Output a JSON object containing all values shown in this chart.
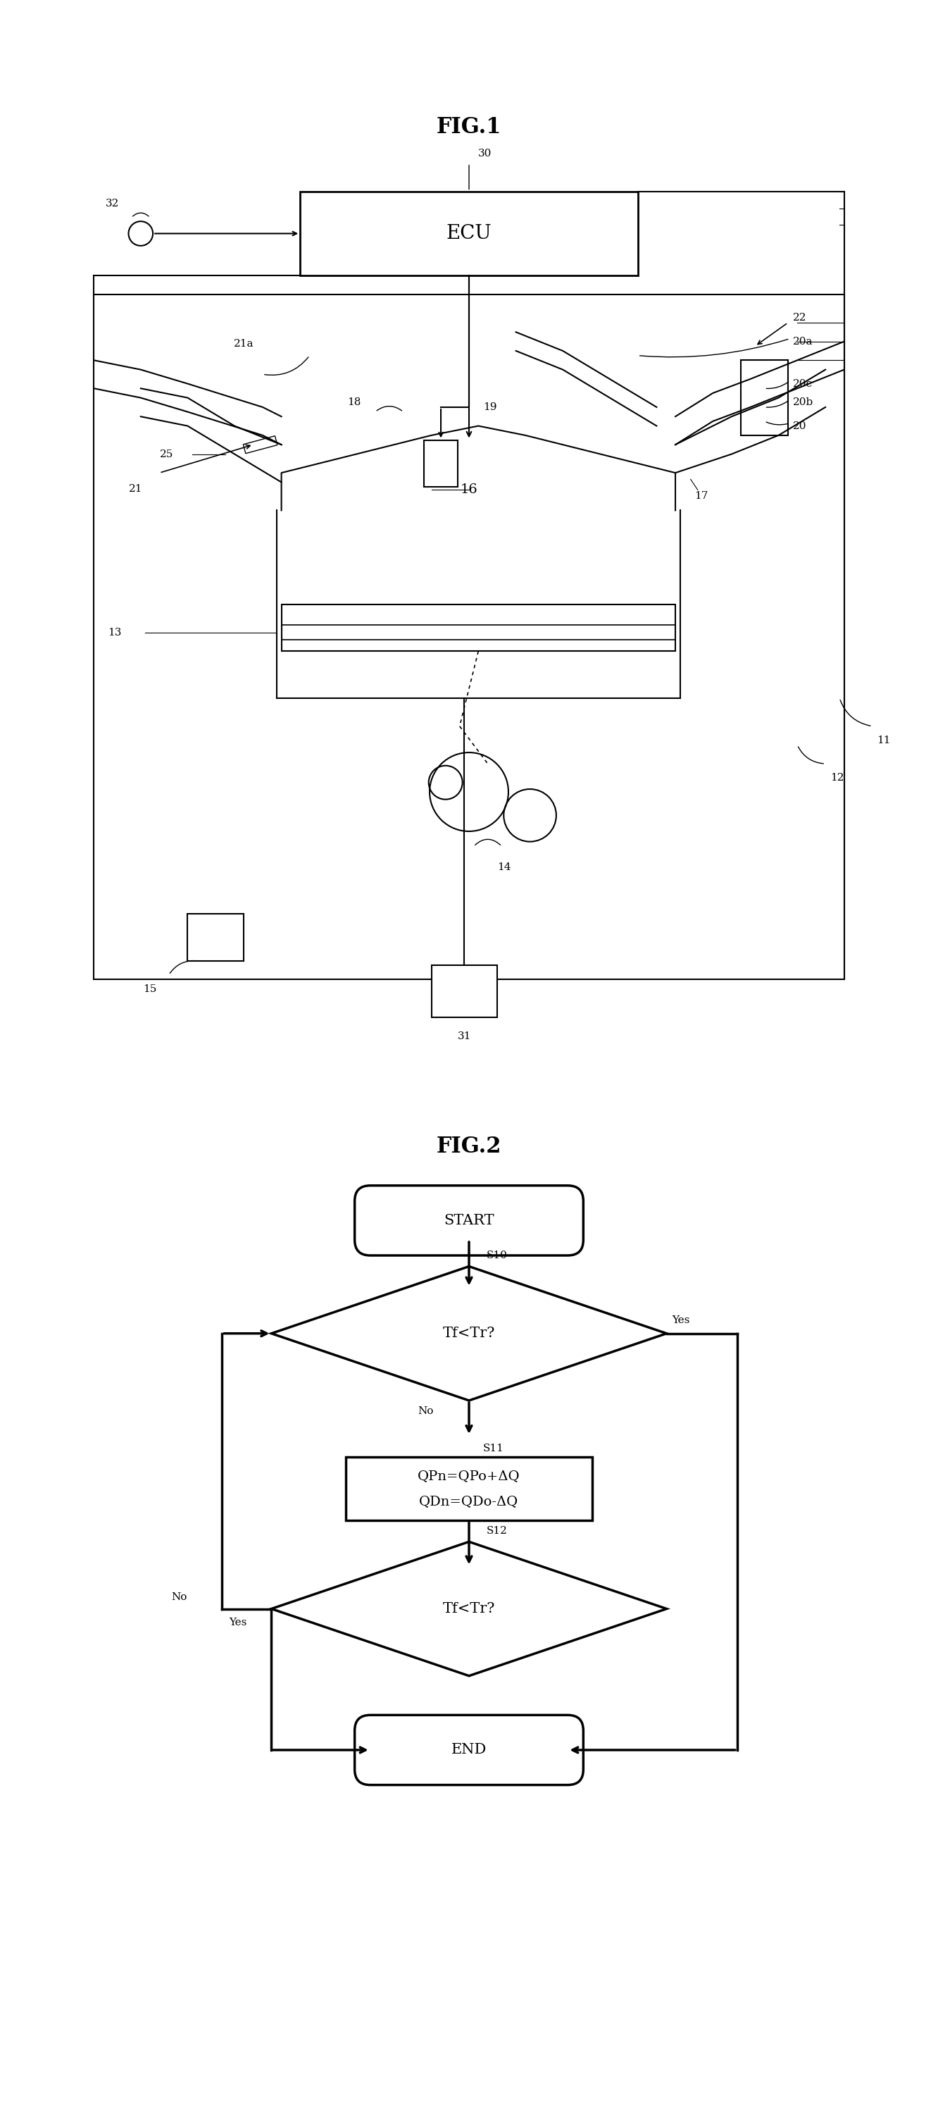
{
  "fig1_title": "FIG.1",
  "fig2_title": "FIG.2",
  "background_color": "#ffffff",
  "fig_title_fontsize": 22,
  "label_fontsize": 11,
  "ecu_fontsize": 20,
  "flowchart_text_fontsize": 15,
  "ecu_label": "ECU",
  "start_label": "START",
  "end_label": "END",
  "decision1_label": "Tf<Tr?",
  "decision2_label": "Tf<Tr?",
  "process_label1": "QPn=QPo+ΔQ",
  "process_label2": "QDn=QDo-ΔQ",
  "s10_label": "S10",
  "s11_label": "S11",
  "s12_label": "S12",
  "yes_label": "Yes",
  "no_label1": "No",
  "no_label2": "No",
  "yes_label2": "Yes",
  "label_30": "30",
  "label_32": "32",
  "label_19": "19",
  "label_18": "18",
  "label_21a": "21a",
  "label_20a": "20a",
  "label_22": "22",
  "label_20c": "20c",
  "label_20b": "20b",
  "label_20": "20",
  "label_21": "21",
  "label_25": "25",
  "label_16": "16",
  "label_17": "17",
  "label_11": "11",
  "label_13": "13",
  "label_14": "14",
  "label_12": "12",
  "label_15": "15",
  "label_31": "31"
}
